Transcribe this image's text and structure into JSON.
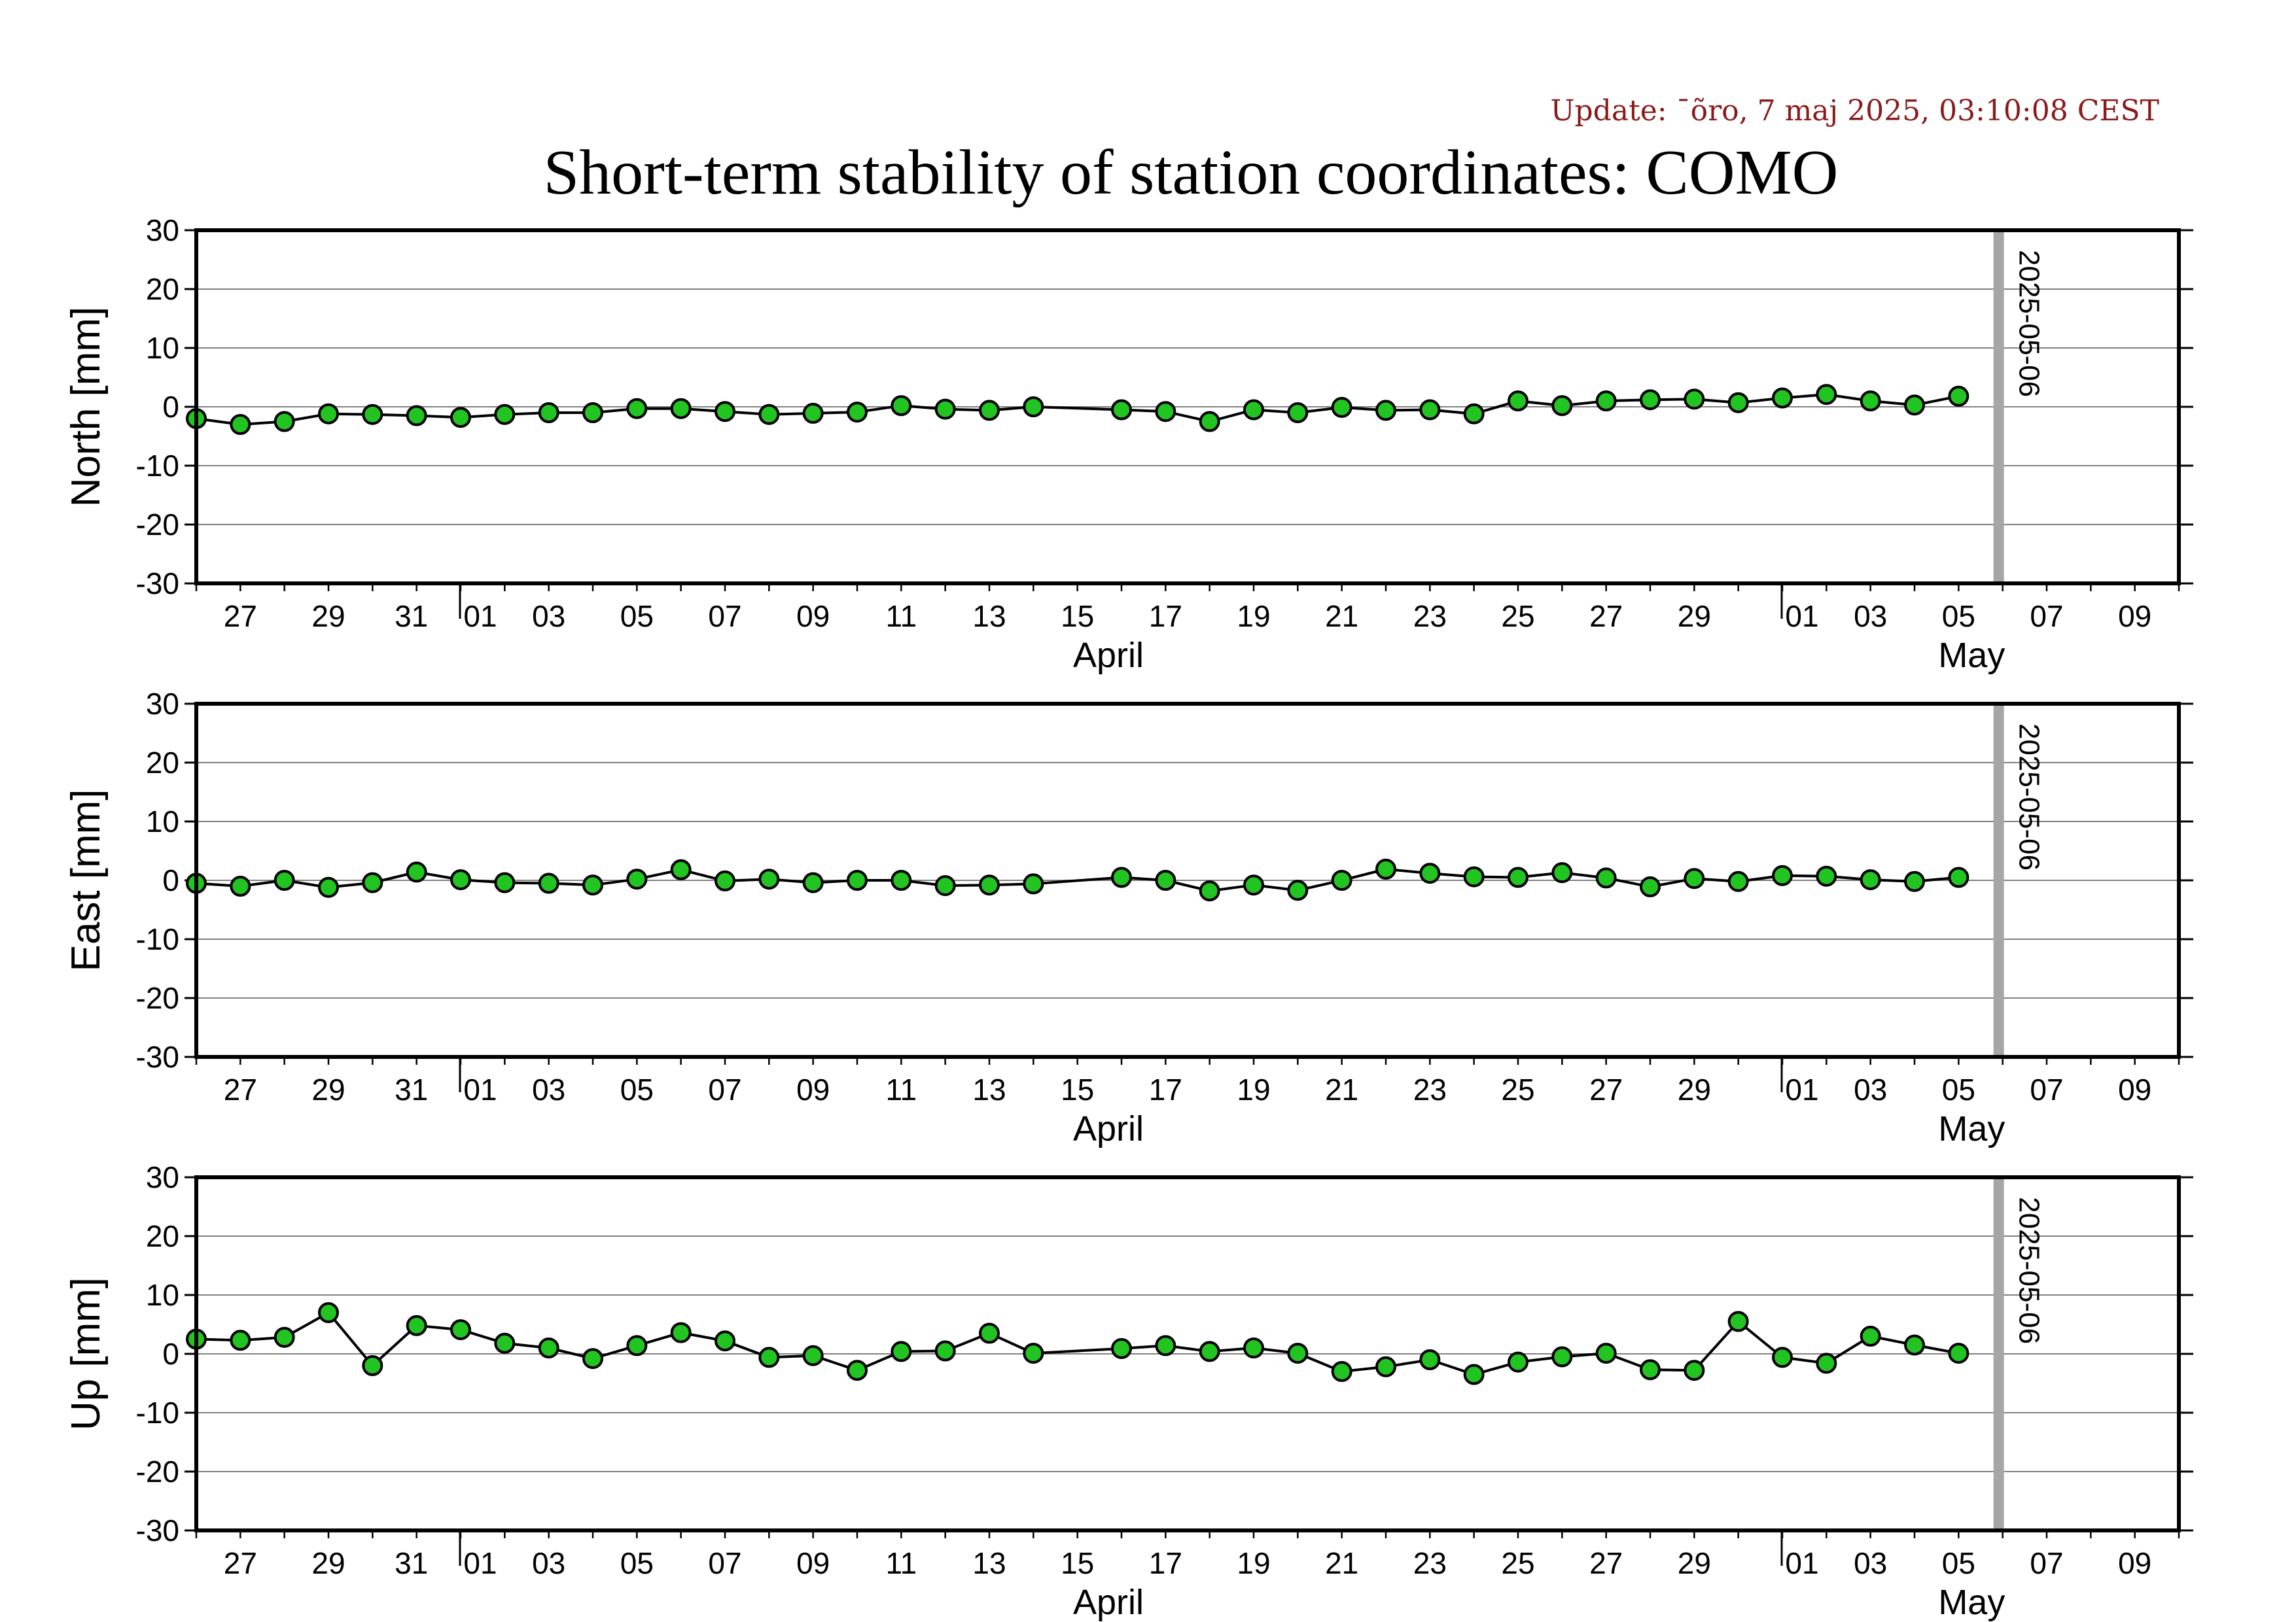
{
  "update_text": "Update: ¯õro, 7 maj 2025, 03:10:08 CEST",
  "title": "Short-term stability of station coordinates: COMO",
  "colors": {
    "marker_fill": "#22c422",
    "marker_stroke": "#000000",
    "line": "#000000",
    "grid": "#808080",
    "today_bar": "#a6a6a6",
    "update_text": "#8b1a1a"
  },
  "chart_data": [
    {
      "type": "line",
      "name": "north",
      "ylabel": "North [mm]",
      "ylim": [
        -30,
        30
      ],
      "yticks": [
        "30",
        "20",
        "10",
        "0",
        "-10",
        "-20",
        "-30"
      ],
      "x_date_range": [
        "2025-03-26",
        "2025-05-10"
      ],
      "x_tick_labels": [
        "27",
        "29",
        "31",
        "01",
        "03",
        "05",
        "07",
        "09",
        "11",
        "13",
        "15",
        "17",
        "19",
        "21",
        "23",
        "25",
        "27",
        "29",
        "01",
        "03",
        "05",
        "07",
        "09"
      ],
      "month_labels": [
        "April",
        "May"
      ],
      "grid": "horizontal",
      "marker_line_label": "2025-05-06",
      "x": [
        "2025-03-26",
        "2025-03-27",
        "2025-03-28",
        "2025-03-29",
        "2025-03-30",
        "2025-03-31",
        "2025-04-01",
        "2025-04-02",
        "2025-04-03",
        "2025-04-04",
        "2025-04-05",
        "2025-04-06",
        "2025-04-07",
        "2025-04-08",
        "2025-04-09",
        "2025-04-10",
        "2025-04-11",
        "2025-04-12",
        "2025-04-13",
        "2025-04-14",
        "2025-04-16",
        "2025-04-17",
        "2025-04-18",
        "2025-04-19",
        "2025-04-20",
        "2025-04-21",
        "2025-04-22",
        "2025-04-23",
        "2025-04-24",
        "2025-04-25",
        "2025-04-26",
        "2025-04-27",
        "2025-04-28",
        "2025-04-29",
        "2025-04-30",
        "2025-05-01",
        "2025-05-02",
        "2025-05-03",
        "2025-05-04",
        "2025-05-05"
      ],
      "y": [
        -2.0,
        -3.0,
        -2.5,
        -1.2,
        -1.3,
        -1.5,
        -1.8,
        -1.3,
        -1.0,
        -1.0,
        -0.3,
        -0.3,
        -0.8,
        -1.3,
        -1.1,
        -0.9,
        0.2,
        -0.4,
        -0.6,
        0.0,
        -0.5,
        -0.8,
        -2.5,
        -0.5,
        -1.0,
        -0.1,
        -0.6,
        -0.5,
        -1.2,
        1.0,
        0.2,
        1.0,
        1.2,
        1.3,
        0.7,
        1.5,
        2.1,
        1.0,
        0.3,
        1.8
      ]
    },
    {
      "type": "line",
      "name": "east",
      "ylabel": "East [mm]",
      "ylim": [
        -30,
        30
      ],
      "yticks": [
        "30",
        "20",
        "10",
        "0",
        "-10",
        "-20",
        "-30"
      ],
      "x_date_range": [
        "2025-03-26",
        "2025-05-10"
      ],
      "x_tick_labels": [
        "27",
        "29",
        "31",
        "01",
        "03",
        "05",
        "07",
        "09",
        "11",
        "13",
        "15",
        "17",
        "19",
        "21",
        "23",
        "25",
        "27",
        "29",
        "01",
        "03",
        "05",
        "07",
        "09"
      ],
      "month_labels": [
        "April",
        "May"
      ],
      "grid": "horizontal",
      "marker_line_label": "2025-05-06",
      "x": [
        "2025-03-26",
        "2025-03-27",
        "2025-03-28",
        "2025-03-29",
        "2025-03-30",
        "2025-03-31",
        "2025-04-01",
        "2025-04-02",
        "2025-04-03",
        "2025-04-04",
        "2025-04-05",
        "2025-04-06",
        "2025-04-07",
        "2025-04-08",
        "2025-04-09",
        "2025-04-10",
        "2025-04-11",
        "2025-04-12",
        "2025-04-13",
        "2025-04-14",
        "2025-04-16",
        "2025-04-17",
        "2025-04-18",
        "2025-04-19",
        "2025-04-20",
        "2025-04-21",
        "2025-04-22",
        "2025-04-23",
        "2025-04-24",
        "2025-04-25",
        "2025-04-26",
        "2025-04-27",
        "2025-04-28",
        "2025-04-29",
        "2025-04-30",
        "2025-05-01",
        "2025-05-02",
        "2025-05-03",
        "2025-05-04",
        "2025-05-05"
      ],
      "y": [
        -0.5,
        -1.0,
        0.0,
        -1.2,
        -0.4,
        1.4,
        0.1,
        -0.4,
        -0.5,
        -0.8,
        0.2,
        1.8,
        -0.1,
        0.2,
        -0.4,
        0.0,
        0.0,
        -0.9,
        -0.8,
        -0.6,
        0.5,
        0.0,
        -1.8,
        -0.8,
        -1.7,
        0.0,
        1.9,
        1.2,
        0.6,
        0.5,
        1.3,
        0.4,
        -1.1,
        0.3,
        -0.2,
        0.8,
        0.7,
        0.1,
        -0.2,
        0.5
      ]
    },
    {
      "type": "line",
      "name": "up",
      "ylabel": "Up [mm]",
      "ylim": [
        -30,
        30
      ],
      "yticks": [
        "30",
        "20",
        "10",
        "0",
        "-10",
        "-20",
        "-30"
      ],
      "x_date_range": [
        "2025-03-26",
        "2025-05-10"
      ],
      "x_tick_labels": [
        "27",
        "29",
        "31",
        "01",
        "03",
        "05",
        "07",
        "09",
        "11",
        "13",
        "15",
        "17",
        "19",
        "21",
        "23",
        "25",
        "27",
        "29",
        "01",
        "03",
        "05",
        "07",
        "09"
      ],
      "month_labels": [
        "April",
        "May"
      ],
      "grid": "horizontal",
      "marker_line_label": "2025-05-06",
      "x": [
        "2025-03-26",
        "2025-03-27",
        "2025-03-28",
        "2025-03-29",
        "2025-03-30",
        "2025-03-31",
        "2025-04-01",
        "2025-04-02",
        "2025-04-03",
        "2025-04-04",
        "2025-04-05",
        "2025-04-06",
        "2025-04-07",
        "2025-04-08",
        "2025-04-09",
        "2025-04-10",
        "2025-04-11",
        "2025-04-12",
        "2025-04-13",
        "2025-04-14",
        "2025-04-16",
        "2025-04-17",
        "2025-04-18",
        "2025-04-19",
        "2025-04-20",
        "2025-04-21",
        "2025-04-22",
        "2025-04-23",
        "2025-04-24",
        "2025-04-25",
        "2025-04-26",
        "2025-04-27",
        "2025-04-28",
        "2025-04-29",
        "2025-04-30",
        "2025-05-01",
        "2025-05-02",
        "2025-05-03",
        "2025-05-04",
        "2025-05-05"
      ],
      "y": [
        2.5,
        2.3,
        2.8,
        7.0,
        -2.0,
        4.8,
        4.1,
        1.8,
        1.0,
        -0.8,
        1.4,
        3.6,
        2.2,
        -0.6,
        -0.3,
        -2.8,
        0.4,
        0.5,
        3.5,
        0.1,
        0.9,
        1.4,
        0.4,
        1.0,
        0.1,
        -3.0,
        -2.2,
        -1.0,
        -3.5,
        -1.4,
        -0.5,
        0.1,
        -2.7,
        -2.8,
        5.5,
        -0.6,
        -1.6,
        3.0,
        1.5,
        0.1
      ]
    }
  ]
}
